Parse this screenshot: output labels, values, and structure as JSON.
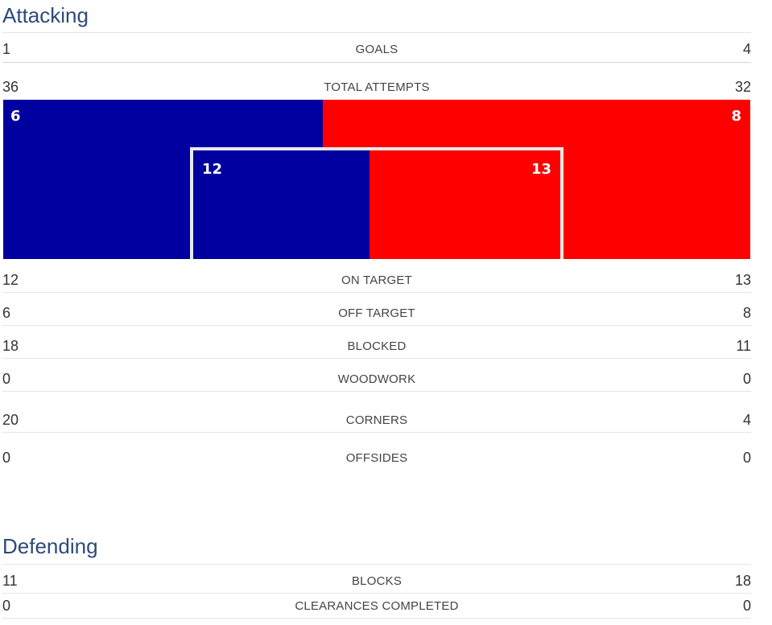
{
  "colors": {
    "home": "#0000a0",
    "away": "#ff0000",
    "title": "#2e4a7a"
  },
  "attacking": {
    "title": "Attacking",
    "goals": {
      "home": "1",
      "label": "GOALS",
      "away": "4"
    },
    "total_attempts": {
      "home": "36",
      "label": "TOTAL ATTEMPTS",
      "away": "32"
    },
    "graphic": {
      "off_target": {
        "home": 6,
        "away": 8
      },
      "on_target": {
        "home": 12,
        "away": 13
      }
    },
    "rows": [
      {
        "home": "12",
        "label": "ON TARGET",
        "away": "13"
      },
      {
        "home": "6",
        "label": "OFF TARGET",
        "away": "8"
      },
      {
        "home": "18",
        "label": "BLOCKED",
        "away": "11"
      },
      {
        "home": "0",
        "label": "WOODWORK",
        "away": "0"
      },
      {
        "home": "20",
        "label": "CORNERS",
        "away": "4"
      },
      {
        "home": "0",
        "label": "OFFSIDES",
        "away": "0"
      }
    ]
  },
  "defending": {
    "title": "Defending",
    "rows": [
      {
        "home": "11",
        "label": "BLOCKS",
        "away": "18"
      },
      {
        "home": "0",
        "label": "CLEARANCES COMPLETED",
        "away": "0"
      }
    ]
  }
}
